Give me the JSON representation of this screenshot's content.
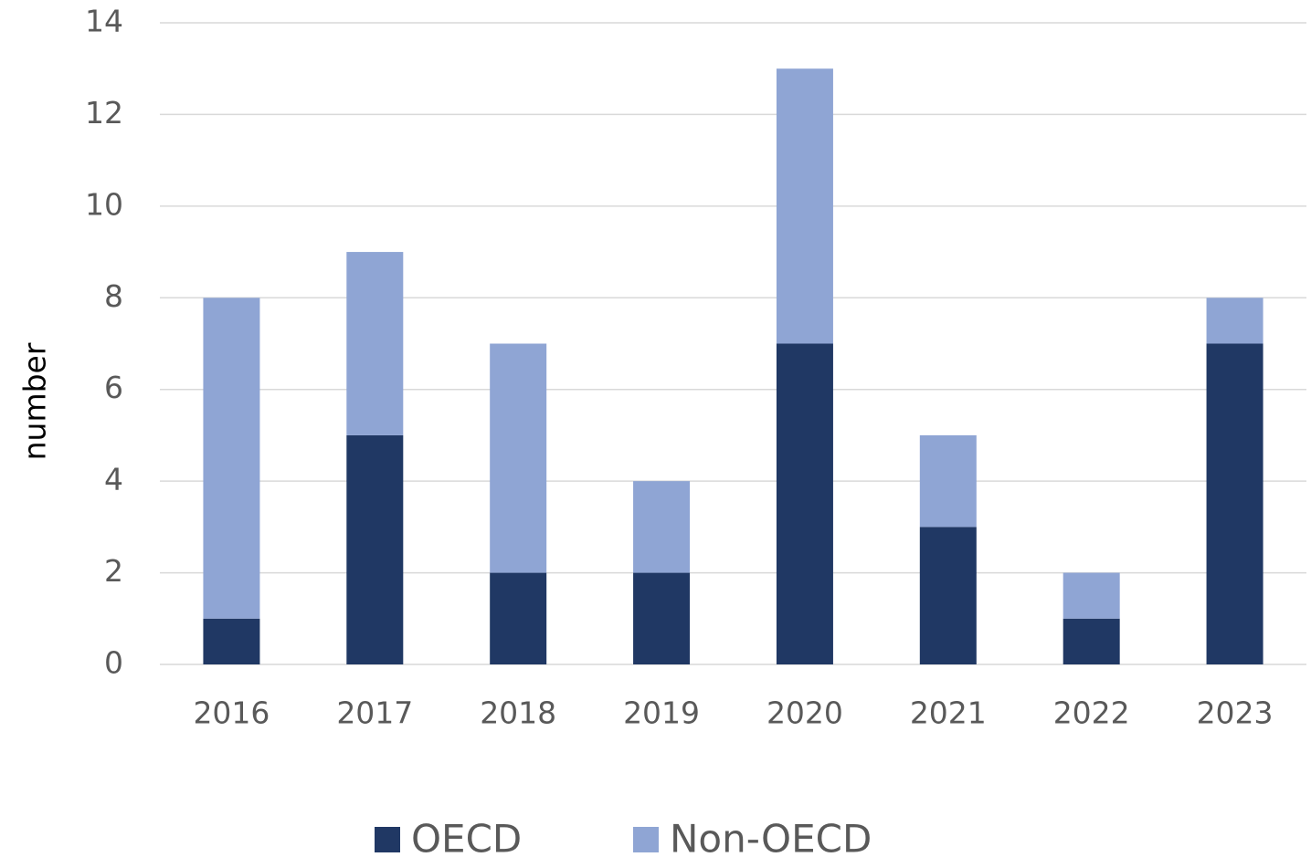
{
  "chart_data": {
    "type": "stacked_bar",
    "y_label": "number",
    "categories": [
      "2016",
      "2017",
      "2018",
      "2019",
      "2020",
      "2021",
      "2022",
      "2023"
    ],
    "series": [
      {
        "name": "OECD",
        "color": "#203864",
        "values": [
          1,
          5,
          2,
          2,
          7,
          3,
          1,
          7
        ]
      },
      {
        "name": "Non-OECD",
        "color": "#8fa5d4",
        "values": [
          7,
          4,
          5,
          2,
          6,
          2,
          1,
          1
        ]
      }
    ],
    "ylim": [
      0,
      14
    ],
    "yticks": [
      0,
      2,
      4,
      6,
      8,
      10,
      12,
      14
    ],
    "grid": true,
    "legend": "bottom"
  }
}
